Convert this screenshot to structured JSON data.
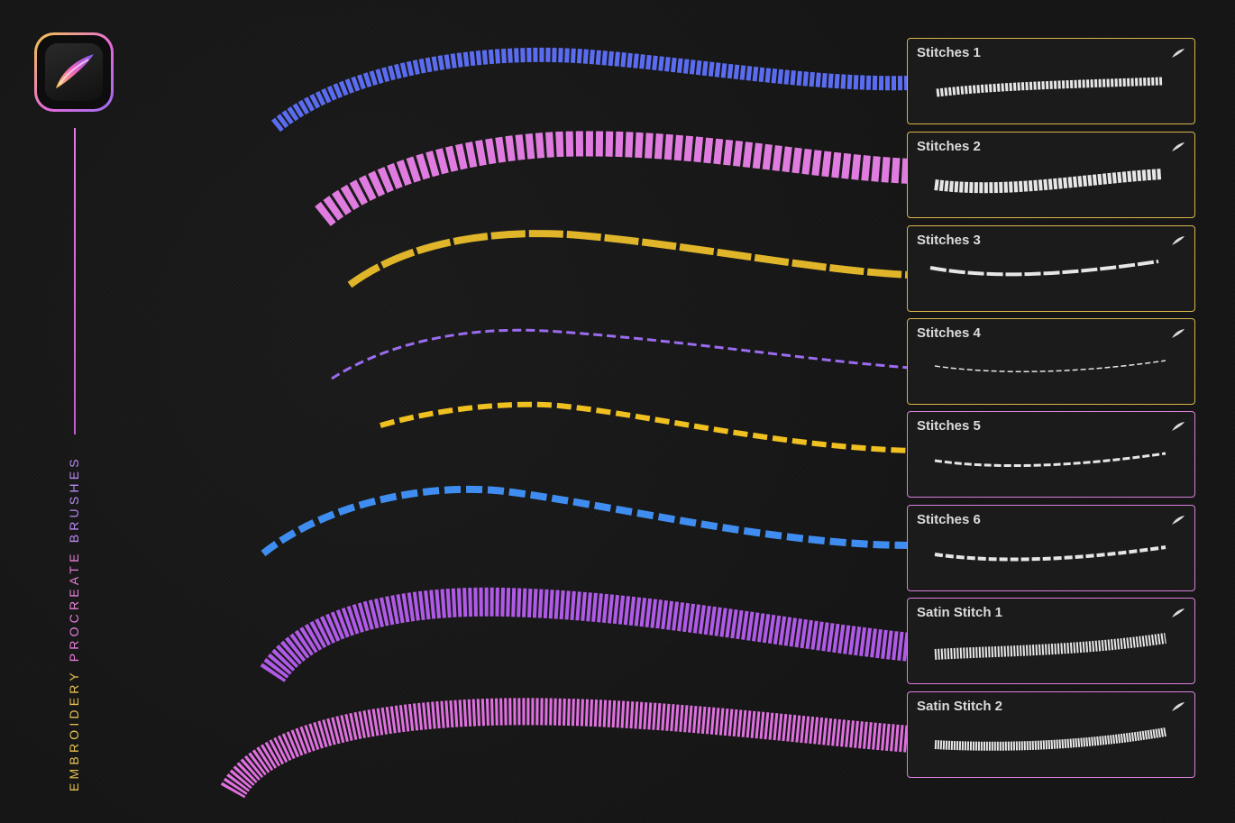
{
  "sidebar": {
    "app_icon": "procreate-brush-icon",
    "title_words": [
      "EMBROIDERY",
      "PROCREATE",
      "BRUSHES"
    ]
  },
  "colors": {
    "background": "#161616",
    "gold": "#e9c150",
    "pink": "#e77fd9",
    "violet": "#b98af2"
  },
  "brushes": [
    {
      "name": "Stitches 1",
      "color": "#5a6cf0",
      "border": "gold"
    },
    {
      "name": "Stitches 2",
      "color": "#e07ce0",
      "border": "gold"
    },
    {
      "name": "Stitches 3",
      "color": "#e0b52a",
      "border": "gold"
    },
    {
      "name": "Stitches 4",
      "color": "#9b6cf0",
      "border": "gold"
    },
    {
      "name": "Stitches 5",
      "color": "#f0c020",
      "border": "pink"
    },
    {
      "name": "Stitches 6",
      "color": "#3f8df0",
      "border": "pink"
    },
    {
      "name": "Satin Stitch 1",
      "color": "#b05ae8",
      "border": "pink"
    },
    {
      "name": "Satin Stitch 2",
      "color": "#e070e0",
      "border": "pink"
    }
  ]
}
